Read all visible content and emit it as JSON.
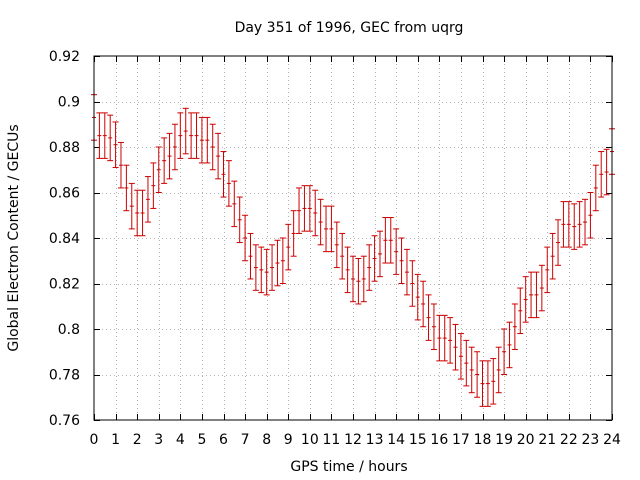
{
  "chart_data": {
    "type": "scatter",
    "title": "Day 351 of 1996, GEC from uqrg",
    "xlabel": "GPS time / hours",
    "ylabel": "Global Electron Content / GECUs",
    "xlim": [
      0,
      24
    ],
    "ylim": [
      0.76,
      0.92
    ],
    "x_ticks": [
      0,
      1,
      2,
      3,
      4,
      5,
      6,
      7,
      8,
      9,
      10,
      11,
      12,
      13,
      14,
      15,
      16,
      17,
      18,
      19,
      20,
      21,
      22,
      23,
      24
    ],
    "y_ticks": [
      0.76,
      0.78,
      0.8,
      0.82,
      0.84,
      0.86,
      0.88,
      0.9,
      0.92
    ],
    "x_tick_labels": [
      "0",
      "1",
      "2",
      "3",
      "4",
      "5",
      "6",
      "7",
      "8",
      "9",
      "10",
      "11",
      "12",
      "13",
      "14",
      "15",
      "16",
      "17",
      "18",
      "19",
      "20",
      "21",
      "22",
      "23",
      "24"
    ],
    "y_tick_labels": [
      "0.76",
      "0.78",
      "0.8",
      "0.82",
      "0.84",
      "0.86",
      "0.88",
      "0.9",
      "0.92"
    ],
    "grid": true,
    "series_color": "#cc0000",
    "series": [
      {
        "name": "GEC",
        "x": [
          0.0,
          0.25,
          0.5,
          0.75,
          1.0,
          1.25,
          1.5,
          1.75,
          2.0,
          2.25,
          2.5,
          2.75,
          3.0,
          3.25,
          3.5,
          3.75,
          4.0,
          4.25,
          4.5,
          4.75,
          5.0,
          5.25,
          5.5,
          5.75,
          6.0,
          6.25,
          6.5,
          6.75,
          7.0,
          7.25,
          7.5,
          7.75,
          8.0,
          8.25,
          8.5,
          8.75,
          9.0,
          9.25,
          9.5,
          9.75,
          10.0,
          10.25,
          10.5,
          10.75,
          11.0,
          11.25,
          11.5,
          11.75,
          12.0,
          12.25,
          12.5,
          12.75,
          13.0,
          13.25,
          13.5,
          13.75,
          14.0,
          14.25,
          14.5,
          14.75,
          15.0,
          15.25,
          15.5,
          15.75,
          16.0,
          16.25,
          16.5,
          16.75,
          17.0,
          17.25,
          17.5,
          17.75,
          18.0,
          18.25,
          18.5,
          18.75,
          19.0,
          19.25,
          19.5,
          19.75,
          20.0,
          20.25,
          20.5,
          20.75,
          21.0,
          21.25,
          21.5,
          21.75,
          22.0,
          22.25,
          22.5,
          22.75,
          23.0,
          23.25,
          23.5,
          23.75,
          24.0
        ],
        "y": [
          0.893,
          0.885,
          0.885,
          0.884,
          0.881,
          0.872,
          0.862,
          0.854,
          0.851,
          0.851,
          0.857,
          0.863,
          0.87,
          0.874,
          0.876,
          0.88,
          0.885,
          0.887,
          0.885,
          0.885,
          0.883,
          0.883,
          0.88,
          0.876,
          0.868,
          0.864,
          0.855,
          0.848,
          0.84,
          0.832,
          0.827,
          0.826,
          0.825,
          0.827,
          0.829,
          0.83,
          0.836,
          0.842,
          0.852,
          0.853,
          0.853,
          0.851,
          0.847,
          0.844,
          0.844,
          0.837,
          0.832,
          0.826,
          0.822,
          0.821,
          0.822,
          0.827,
          0.831,
          0.833,
          0.839,
          0.839,
          0.834,
          0.83,
          0.825,
          0.82,
          0.814,
          0.811,
          0.805,
          0.801,
          0.796,
          0.796,
          0.795,
          0.792,
          0.788,
          0.785,
          0.782,
          0.78,
          0.776,
          0.776,
          0.777,
          0.782,
          0.79,
          0.793,
          0.801,
          0.808,
          0.813,
          0.815,
          0.815,
          0.818,
          0.826,
          0.832,
          0.838,
          0.846,
          0.846,
          0.845,
          0.846,
          0.847,
          0.85,
          0.862,
          0.868,
          0.869,
          0.878
        ],
        "err": 0.01
      }
    ]
  }
}
